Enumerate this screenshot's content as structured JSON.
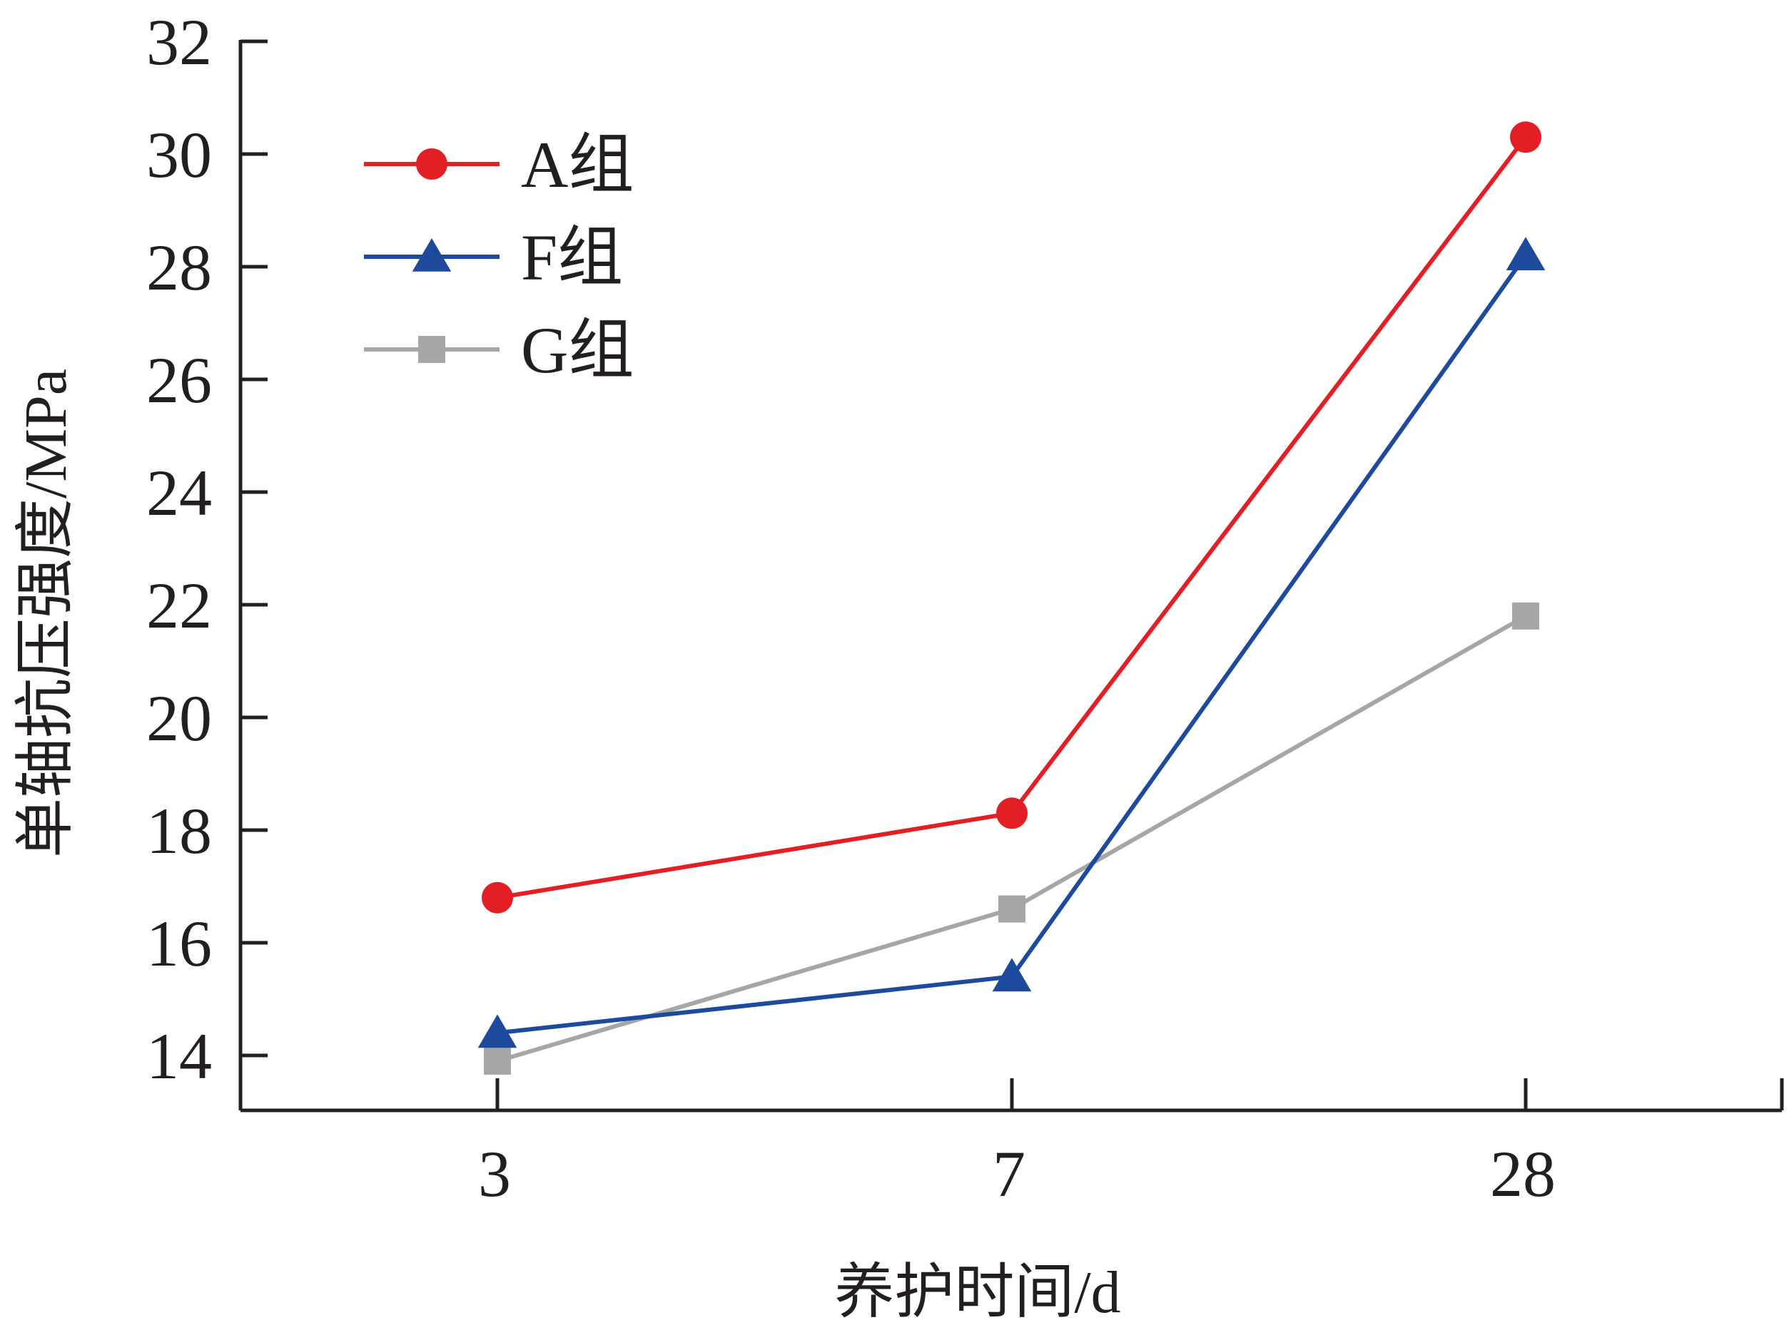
{
  "chart_data": {
    "type": "line",
    "title": "",
    "xlabel": "养护时间/d",
    "ylabel": "单轴抗压强度/MPa",
    "categories": [
      "3",
      "7",
      "28"
    ],
    "ylim": [
      14,
      32
    ],
    "yticks": [
      "14",
      "16",
      "18",
      "20",
      "22",
      "24",
      "26",
      "28",
      "30",
      "32"
    ],
    "grid": false,
    "legend_position": "top-left",
    "series": [
      {
        "name": "A组",
        "values": [
          16.8,
          18.3,
          30.3
        ],
        "color": "#e31e24",
        "marker": "circle"
      },
      {
        "name": "F组",
        "values": [
          14.4,
          15.4,
          28.2
        ],
        "color": "#1d4a9c",
        "marker": "triangle"
      },
      {
        "name": "G组",
        "values": [
          13.9,
          16.6,
          21.8
        ],
        "color": "#a6a6a6",
        "marker": "square"
      }
    ]
  }
}
